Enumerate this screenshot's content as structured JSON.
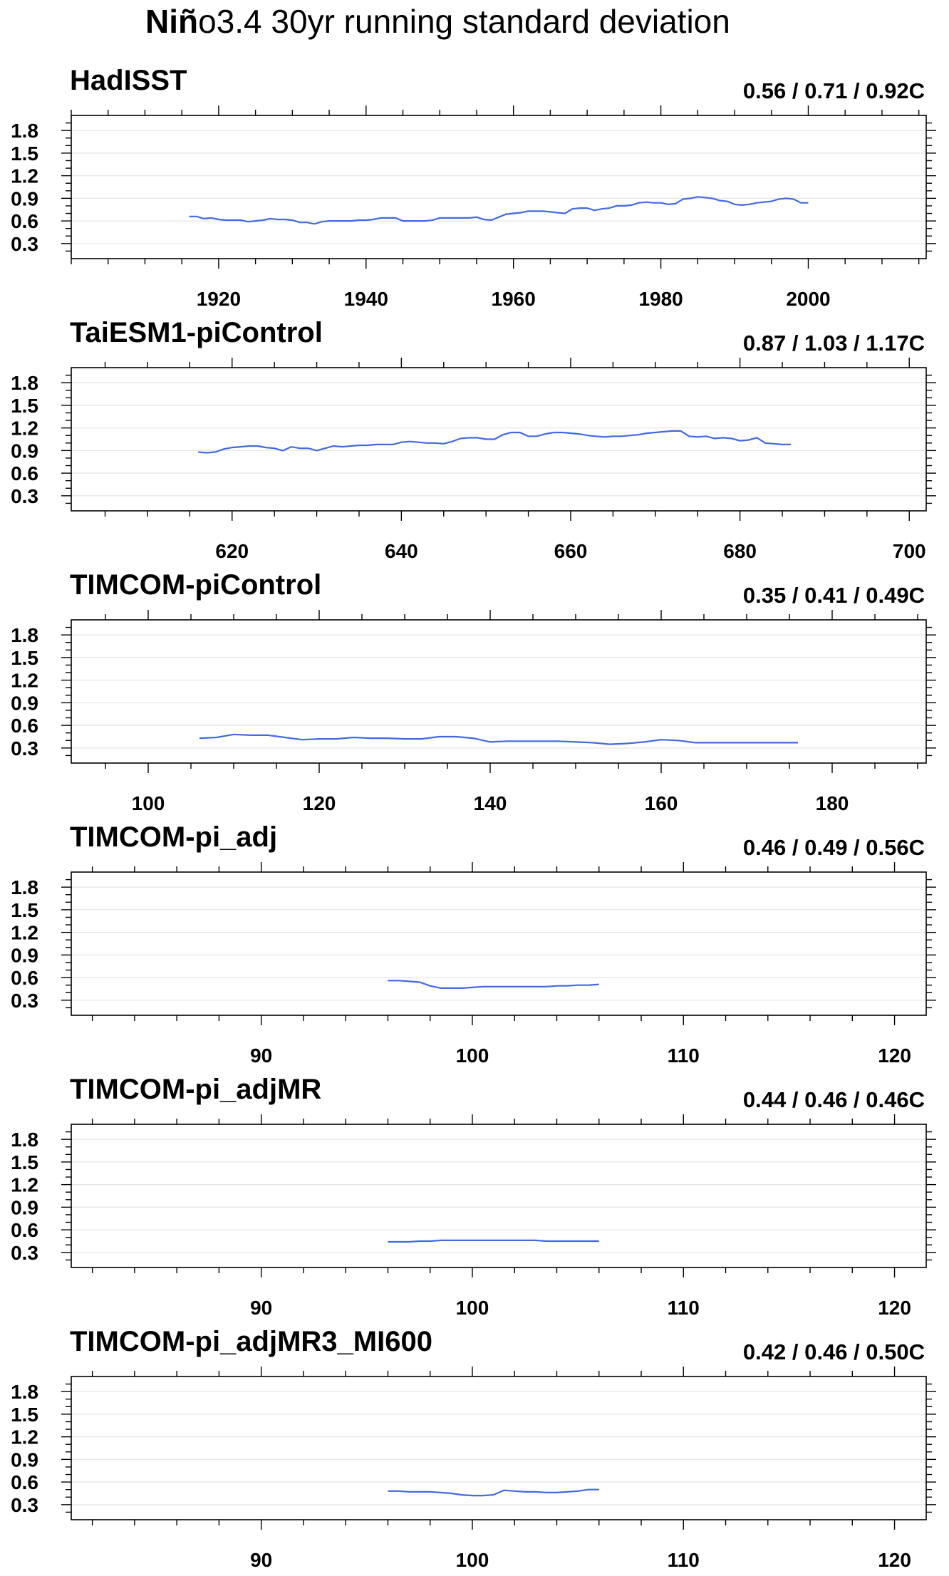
{
  "figure": {
    "title_bold": "Niñ",
    "title_rest": "o3.4 30yr running standard deviation"
  },
  "colors": {
    "series": "#4169e1",
    "grid": "#e6e6e6",
    "frame": "#000000"
  },
  "chart_data": [
    {
      "type": "line",
      "title": "HadISST",
      "stats": "0.56 / 0.71 / 0.92C",
      "xlim": [
        1900,
        2016
      ],
      "ylim": [
        0.1,
        2.0
      ],
      "yticks": [
        0.3,
        0.6,
        0.9,
        1.2,
        1.5,
        1.8
      ],
      "yticklabels": [
        "0.3",
        "0.6",
        "0.9",
        "1.2",
        "1.5",
        "1.8"
      ],
      "xticks": [
        1920,
        1940,
        1960,
        1980,
        2000
      ],
      "xticklabels": [
        "1920",
        "1940",
        "1960",
        "1980",
        "2000"
      ],
      "xminor": 5,
      "x": [
        1916,
        1917,
        1918,
        1919,
        1920,
        1921,
        1922,
        1923,
        1924,
        1925,
        1926,
        1927,
        1928,
        1929,
        1930,
        1931,
        1932,
        1933,
        1934,
        1935,
        1936,
        1937,
        1938,
        1939,
        1940,
        1941,
        1942,
        1943,
        1944,
        1945,
        1946,
        1947,
        1948,
        1949,
        1950,
        1951,
        1952,
        1953,
        1954,
        1955,
        1956,
        1957,
        1958,
        1959,
        1960,
        1961,
        1962,
        1963,
        1964,
        1965,
        1966,
        1967,
        1968,
        1969,
        1970,
        1971,
        1972,
        1973,
        1974,
        1975,
        1976,
        1977,
        1978,
        1979,
        1980,
        1981,
        1982,
        1983,
        1984,
        1985,
        1986,
        1987,
        1988,
        1989,
        1990,
        1991,
        1992,
        1993,
        1994,
        1995,
        1996,
        1997,
        1998,
        1999,
        2000
      ],
      "y": [
        0.66,
        0.66,
        0.63,
        0.64,
        0.62,
        0.61,
        0.61,
        0.61,
        0.59,
        0.6,
        0.61,
        0.63,
        0.62,
        0.62,
        0.61,
        0.58,
        0.58,
        0.56,
        0.59,
        0.6,
        0.6,
        0.6,
        0.6,
        0.61,
        0.61,
        0.62,
        0.64,
        0.64,
        0.64,
        0.6,
        0.6,
        0.6,
        0.6,
        0.61,
        0.64,
        0.64,
        0.64,
        0.64,
        0.64,
        0.65,
        0.62,
        0.61,
        0.65,
        0.69,
        0.7,
        0.71,
        0.73,
        0.73,
        0.73,
        0.72,
        0.71,
        0.7,
        0.76,
        0.77,
        0.77,
        0.74,
        0.76,
        0.77,
        0.8,
        0.8,
        0.81,
        0.84,
        0.85,
        0.84,
        0.84,
        0.82,
        0.83,
        0.89,
        0.9,
        0.92,
        0.91,
        0.9,
        0.87,
        0.86,
        0.82,
        0.81,
        0.82,
        0.84,
        0.85,
        0.86,
        0.89,
        0.9,
        0.89,
        0.84,
        0.84
      ]
    },
    {
      "type": "line",
      "title": "TaiESM1-piControl",
      "stats": "0.87 / 1.03 / 1.17C",
      "xlim": [
        601,
        702
      ],
      "ylim": [
        0.1,
        2.0
      ],
      "yticks": [
        0.3,
        0.6,
        0.9,
        1.2,
        1.5,
        1.8
      ],
      "yticklabels": [
        "0.3",
        "0.6",
        "0.9",
        "1.2",
        "1.5",
        "1.8"
      ],
      "xticks": [
        620,
        640,
        660,
        680,
        700
      ],
      "xticklabels": [
        "620",
        "640",
        "660",
        "680",
        "700"
      ],
      "xminor": 5,
      "x": [
        616,
        617,
        618,
        619,
        620,
        621,
        622,
        623,
        624,
        625,
        626,
        627,
        628,
        629,
        630,
        631,
        632,
        633,
        634,
        635,
        636,
        637,
        638,
        639,
        640,
        641,
        642,
        643,
        644,
        645,
        646,
        647,
        648,
        649,
        650,
        651,
        652,
        653,
        654,
        655,
        656,
        657,
        658,
        659,
        660,
        661,
        662,
        663,
        664,
        665,
        666,
        667,
        668,
        669,
        670,
        671,
        672,
        673,
        674,
        675,
        676,
        677,
        678,
        679,
        680,
        681,
        682,
        683,
        684,
        685,
        686
      ],
      "y": [
        0.88,
        0.87,
        0.88,
        0.92,
        0.94,
        0.95,
        0.96,
        0.96,
        0.94,
        0.93,
        0.9,
        0.95,
        0.93,
        0.93,
        0.9,
        0.93,
        0.96,
        0.95,
        0.96,
        0.97,
        0.97,
        0.98,
        0.98,
        0.98,
        1.01,
        1.02,
        1.01,
        1.0,
        1.0,
        0.99,
        1.02,
        1.06,
        1.07,
        1.07,
        1.05,
        1.05,
        1.11,
        1.14,
        1.14,
        1.09,
        1.09,
        1.12,
        1.14,
        1.14,
        1.13,
        1.12,
        1.1,
        1.09,
        1.08,
        1.09,
        1.09,
        1.1,
        1.11,
        1.13,
        1.14,
        1.15,
        1.16,
        1.16,
        1.09,
        1.08,
        1.09,
        1.06,
        1.07,
        1.06,
        1.03,
        1.04,
        1.07,
        1.0,
        0.99,
        0.98,
        0.98
      ]
    },
    {
      "type": "line",
      "title": "TIMCOM-piControl",
      "stats": "0.35 / 0.41 / 0.49C",
      "xlim": [
        91,
        191
      ],
      "ylim": [
        0.1,
        2.0
      ],
      "yticks": [
        0.3,
        0.6,
        0.9,
        1.2,
        1.5,
        1.8
      ],
      "yticklabels": [
        "0.3",
        "0.6",
        "0.9",
        "1.2",
        "1.5",
        "1.8"
      ],
      "xticks": [
        100,
        120,
        140,
        160,
        180
      ],
      "xticklabels": [
        "100",
        "120",
        "140",
        "160",
        "180"
      ],
      "xminor": 5,
      "x": [
        106,
        108,
        110,
        112,
        114,
        116,
        118,
        120,
        122,
        124,
        126,
        128,
        130,
        132,
        134,
        136,
        138,
        140,
        142,
        144,
        146,
        148,
        150,
        152,
        154,
        156,
        158,
        160,
        162,
        164,
        166,
        168,
        170,
        172,
        174,
        176
      ],
      "y": [
        0.43,
        0.44,
        0.48,
        0.47,
        0.47,
        0.44,
        0.41,
        0.42,
        0.42,
        0.44,
        0.43,
        0.43,
        0.42,
        0.42,
        0.45,
        0.45,
        0.43,
        0.38,
        0.39,
        0.39,
        0.39,
        0.39,
        0.38,
        0.37,
        0.35,
        0.36,
        0.38,
        0.41,
        0.4,
        0.37,
        0.37,
        0.37,
        0.37,
        0.37,
        0.37,
        0.37
      ]
    },
    {
      "type": "line",
      "title": "TIMCOM-pi_adj",
      "stats": "0.46 / 0.49 / 0.56C",
      "xlim": [
        81,
        121.5
      ],
      "ylim": [
        0.1,
        2.0
      ],
      "yticks": [
        0.3,
        0.6,
        0.9,
        1.2,
        1.5,
        1.8
      ],
      "yticklabels": [
        "0.3",
        "0.6",
        "0.9",
        "1.2",
        "1.5",
        "1.8"
      ],
      "xticks": [
        90,
        100,
        110,
        120
      ],
      "xticklabels": [
        "90",
        "100",
        "110",
        "120"
      ],
      "xminor": 2,
      "x": [
        96,
        96.5,
        97,
        97.5,
        98,
        98.5,
        99,
        99.5,
        100,
        100.5,
        101,
        101.5,
        102,
        102.5,
        103,
        103.5,
        104,
        104.5,
        105,
        105.5,
        106
      ],
      "y": [
        0.56,
        0.56,
        0.55,
        0.54,
        0.49,
        0.46,
        0.46,
        0.46,
        0.47,
        0.48,
        0.48,
        0.48,
        0.48,
        0.48,
        0.48,
        0.48,
        0.49,
        0.49,
        0.5,
        0.5,
        0.51
      ]
    },
    {
      "type": "line",
      "title": "TIMCOM-pi_adjMR",
      "stats": "0.44 / 0.46 / 0.46C",
      "xlim": [
        81,
        121.5
      ],
      "ylim": [
        0.1,
        2.0
      ],
      "yticks": [
        0.3,
        0.6,
        0.9,
        1.2,
        1.5,
        1.8
      ],
      "yticklabels": [
        "0.3",
        "0.6",
        "0.9",
        "1.2",
        "1.5",
        "1.8"
      ],
      "xticks": [
        90,
        100,
        110,
        120
      ],
      "xticklabels": [
        "90",
        "100",
        "110",
        "120"
      ],
      "xminor": 2,
      "x": [
        96,
        96.5,
        97,
        97.5,
        98,
        98.5,
        99,
        99.5,
        100,
        100.5,
        101,
        101.5,
        102,
        102.5,
        103,
        103.5,
        104,
        104.5,
        105,
        105.5,
        106
      ],
      "y": [
        0.44,
        0.44,
        0.44,
        0.45,
        0.45,
        0.46,
        0.46,
        0.46,
        0.46,
        0.46,
        0.46,
        0.46,
        0.46,
        0.46,
        0.46,
        0.45,
        0.45,
        0.45,
        0.45,
        0.45,
        0.45
      ]
    },
    {
      "type": "line",
      "title": "TIMCOM-pi_adjMR3_MI600",
      "stats": "0.42 / 0.46 / 0.50C",
      "xlim": [
        81,
        121.5
      ],
      "ylim": [
        0.1,
        2.0
      ],
      "yticks": [
        0.3,
        0.6,
        0.9,
        1.2,
        1.5,
        1.8
      ],
      "yticklabels": [
        "0.3",
        "0.6",
        "0.9",
        "1.2",
        "1.5",
        "1.8"
      ],
      "xticks": [
        90,
        100,
        110,
        120
      ],
      "xticklabels": [
        "90",
        "100",
        "110",
        "120"
      ],
      "xminor": 2,
      "x": [
        96,
        96.5,
        97,
        97.5,
        98,
        98.5,
        99,
        99.5,
        100,
        100.5,
        101,
        101.5,
        102,
        102.5,
        103,
        103.5,
        104,
        104.5,
        105,
        105.5,
        106
      ],
      "y": [
        0.48,
        0.48,
        0.47,
        0.47,
        0.47,
        0.46,
        0.45,
        0.43,
        0.42,
        0.42,
        0.43,
        0.49,
        0.48,
        0.47,
        0.47,
        0.46,
        0.46,
        0.47,
        0.48,
        0.5,
        0.5
      ]
    }
  ]
}
